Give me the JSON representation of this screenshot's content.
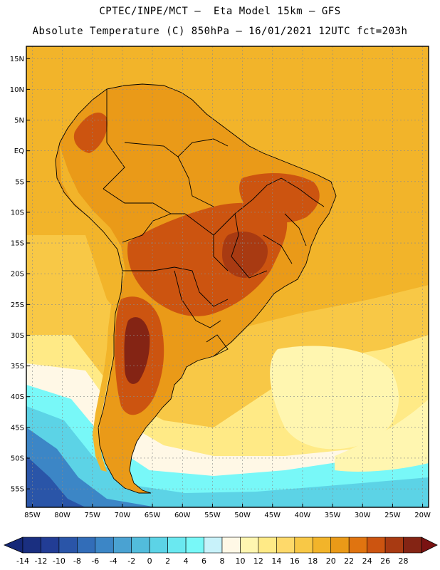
{
  "header": {
    "line1": "CPTEC/INPE/MCT –  Eta Model 15km – GFS",
    "line2": "Absolute Temperature (C) 850hPa – 16/01/2021 12UTC fct=203h"
  },
  "axes": {
    "lat_labels": [
      "15N",
      "10N",
      "5N",
      "EQ",
      "5S",
      "10S",
      "15S",
      "20S",
      "25S",
      "30S",
      "35S",
      "40S",
      "45S",
      "50S",
      "55S"
    ],
    "lat_values": [
      15,
      10,
      5,
      0,
      -5,
      -10,
      -15,
      -20,
      -25,
      -30,
      -35,
      -40,
      -45,
      -50,
      -55
    ],
    "lon_labels": [
      "85W",
      "80W",
      "75W",
      "70W",
      "65W",
      "60W",
      "55W",
      "50W",
      "45W",
      "40W",
      "35W",
      "30W",
      "25W",
      "20W"
    ],
    "lon_values": [
      -85,
      -80,
      -75,
      -70,
      -65,
      -60,
      -55,
      -50,
      -45,
      -40,
      -35,
      -30,
      -25,
      -20
    ],
    "lat_range": [
      -58,
      17
    ],
    "lon_range": [
      -86,
      -19
    ]
  },
  "colorbar": {
    "labels": [
      "-14",
      "-12",
      "-10",
      "-8",
      "-6",
      "-4",
      "-2",
      "0",
      "2",
      "4",
      "6",
      "8",
      "10",
      "12",
      "14",
      "16",
      "18",
      "20",
      "22",
      "24",
      "26",
      "28"
    ],
    "colors": [
      "#1a2f80",
      "#223d95",
      "#2a55a8",
      "#326db8",
      "#3c86c6",
      "#4aa2d2",
      "#52bcdc",
      "#5cd3e6",
      "#6ae8f0",
      "#78f8f8",
      "#c8f2fa",
      "#fff8e6",
      "#fff6b0",
      "#ffea86",
      "#fed96a",
      "#f8c846",
      "#f2b42a",
      "#ea9a18",
      "#e07410",
      "#cc5410",
      "#a83a12",
      "#842414"
    ],
    "low_extend_color": "#152878",
    "high_extend_color": "#7a1212"
  },
  "background_colors": {
    "ocean_tropical": "#f2b42a",
    "ocean_subtropical": "#f8c846",
    "ocean_mid": "#ffea86",
    "ocean_south_high": "#fff6b0",
    "ocean_cool": "#fff8e6",
    "ocean_cold1": "#78f8f8",
    "ocean_cold2": "#5cd3e6",
    "ocean_cold3": "#3c86c6",
    "ocean_cold4": "#2a55a8",
    "land_base": "#ea9a18",
    "land_hot": "#cc5410",
    "land_hotter": "#a83a12",
    "land_hottest": "#842414",
    "andes": "#f2b42a"
  }
}
